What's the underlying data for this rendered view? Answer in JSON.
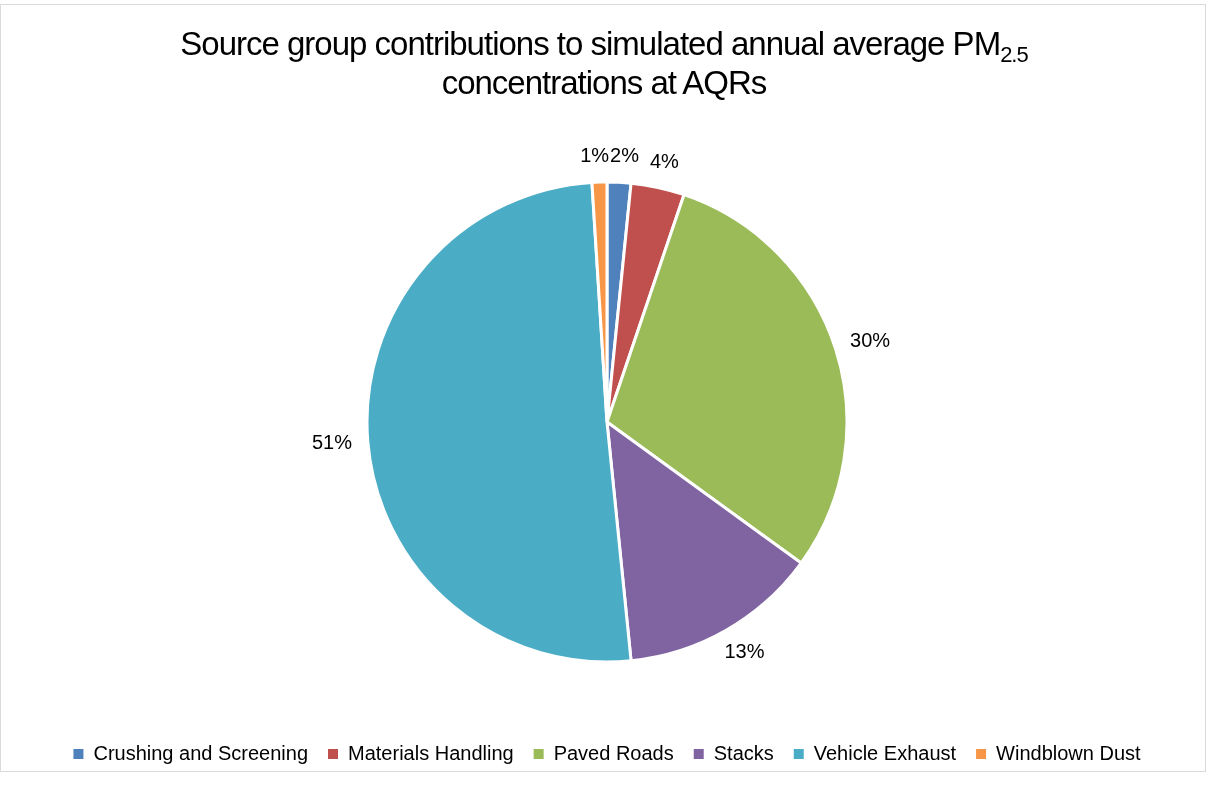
{
  "chart_data": {
    "type": "pie",
    "title": "Source group contributions to simulated annual average PM$_{2.5}$ concentrations at AQRs",
    "categories": [
      "Crushing and Screening",
      "Materials Handling",
      "Paved Roads",
      "Stacks",
      "Vehicle Exhaust",
      "Windblown Dust"
    ],
    "values": [
      1.6,
      3.6,
      29.8,
      13.4,
      50.6,
      1.0
    ],
    "colors": [
      "#4f81bd",
      "#c0504d",
      "#9bbb59",
      "#8064a2",
      "#4bacc6",
      "#f79646"
    ],
    "value_labels": [
      "2%",
      "4%",
      "30%",
      "13%",
      "51%",
      "1%"
    ],
    "legend": "bottom"
  }
}
